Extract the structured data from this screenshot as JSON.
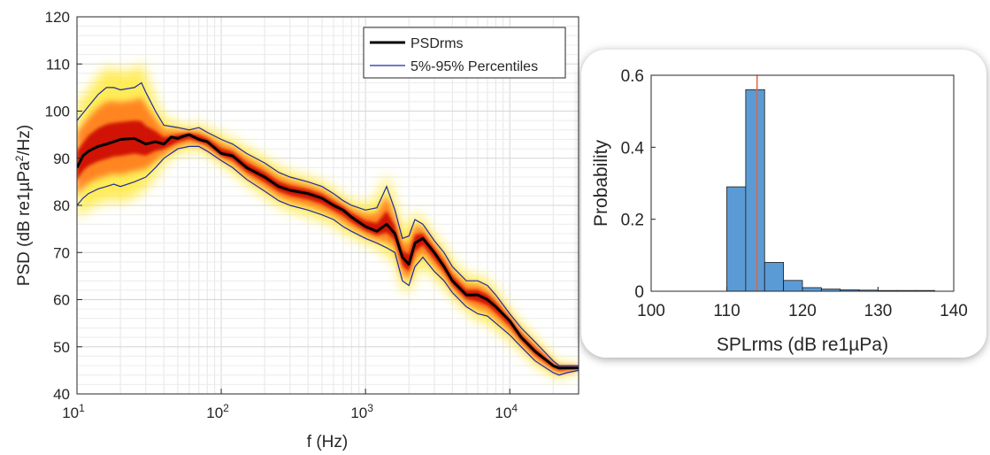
{
  "chart_data": [
    {
      "type": "line",
      "xlabel": "f (Hz)",
      "ylabel_parts": [
        "PSD (dB re1µPa",
        "2",
        "/Hz)"
      ],
      "xscale": "log",
      "xlim": [
        10,
        30000
      ],
      "ylim": [
        40,
        120
      ],
      "yticks": [
        40,
        50,
        60,
        70,
        80,
        90,
        100,
        110,
        120
      ],
      "xticks": [
        {
          "value": 10,
          "base": "10",
          "exp": "1"
        },
        {
          "value": 100,
          "base": "10",
          "exp": "2"
        },
        {
          "value": 1000,
          "base": "10",
          "exp": "3"
        },
        {
          "value": 10000,
          "base": "10",
          "exp": "4"
        }
      ],
      "grid": true,
      "legend_position": "top-right",
      "colors": {
        "psd": "#000000",
        "percentile": "#1f2a9e",
        "heat_core": "#c80000",
        "heat_mid": "#ff7a1a",
        "heat_outer": "#ffe93a"
      },
      "series": [
        {
          "name": "PSDrms",
          "x": [
            10,
            11,
            12,
            14,
            16,
            18,
            20,
            25,
            30,
            35,
            40,
            45,
            50,
            55,
            60,
            70,
            80,
            100,
            120,
            150,
            200,
            250,
            300,
            400,
            500,
            600,
            700,
            800,
            1000,
            1200,
            1400,
            1600,
            1800,
            2000,
            2200,
            2500,
            3000,
            3500,
            4000,
            5000,
            6000,
            7000,
            8000,
            10000,
            12000,
            15000,
            20000,
            22000,
            25000,
            30000
          ],
          "values": [
            88,
            90.5,
            91.5,
            92.5,
            93,
            93.5,
            94,
            94.2,
            93,
            93.5,
            93,
            94.5,
            94.2,
            94.7,
            95,
            94,
            93.5,
            91,
            90.5,
            88,
            86,
            84,
            83.2,
            82.5,
            81.5,
            80,
            79,
            77.5,
            75.5,
            74.5,
            76,
            74,
            69,
            67.5,
            72,
            73,
            70,
            67,
            64,
            61,
            61,
            60,
            58.5,
            55.5,
            52,
            49,
            46,
            45.5,
            45.5,
            45.5
          ]
        },
        {
          "name": "5%-95% Percentiles",
          "x": [
            10,
            12,
            14,
            16,
            18,
            20,
            25,
            28,
            30,
            35,
            40,
            50,
            60,
            70,
            80,
            100,
            120,
            150,
            200,
            250,
            300,
            400,
            500,
            600,
            700,
            800,
            1000,
            1200,
            1400,
            1600,
            1800,
            2000,
            2200,
            2500,
            3000,
            3500,
            4000,
            5000,
            6000,
            7000,
            8000,
            10000,
            12000,
            15000,
            20000,
            22000,
            25000,
            30000
          ],
          "values": [
            98,
            101,
            103.5,
            105,
            105,
            104.5,
            105,
            106,
            104,
            100,
            97,
            96.5,
            96,
            96.5,
            95.5,
            94,
            93,
            91,
            89,
            87,
            86,
            85,
            84,
            82.5,
            81,
            80,
            79,
            79.5,
            84,
            79,
            73,
            73.5,
            77,
            76,
            72.5,
            70,
            67,
            64,
            64,
            63,
            61,
            57,
            54,
            51,
            47,
            46,
            46,
            46
          ]
        },
        {
          "name": "5%-95% Percentiles",
          "x": [
            10,
            11,
            12,
            14,
            16,
            18,
            20,
            25,
            30,
            35,
            40,
            50,
            60,
            70,
            80,
            100,
            120,
            150,
            200,
            250,
            300,
            400,
            500,
            600,
            700,
            800,
            1000,
            1200,
            1400,
            1600,
            1800,
            2000,
            2200,
            2500,
            3000,
            3500,
            4000,
            5000,
            6000,
            7000,
            8000,
            10000,
            12000,
            15000,
            20000,
            22000,
            25000,
            30000
          ],
          "values": [
            80,
            81.5,
            82.5,
            83.5,
            84,
            84.5,
            84,
            85,
            86,
            88,
            90,
            92,
            92.5,
            92.5,
            91.5,
            89.5,
            88,
            85.5,
            83,
            81,
            80,
            79,
            78,
            77,
            75.5,
            74.5,
            73,
            72,
            71,
            70,
            64,
            63,
            67,
            69,
            66,
            64,
            61.5,
            58.5,
            57,
            56.5,
            55,
            52.5,
            50,
            47,
            44.5,
            44,
            44.5,
            45
          ]
        }
      ]
    },
    {
      "type": "bar",
      "xlabel": "SPLrms (dB re1µPa)",
      "ylabel": "Probability",
      "xlim": [
        100,
        140
      ],
      "ylim": [
        0,
        0.6
      ],
      "xticks": [
        100,
        110,
        120,
        130,
        140
      ],
      "yticks": [
        0,
        0.2,
        0.4,
        0.6
      ],
      "ytick_labels": [
        "0",
        "0.2",
        "0.4",
        "0.6"
      ],
      "bin_width": 2.5,
      "bin_edges_start": [
        110,
        112.5,
        115,
        117.5,
        120,
        122.5,
        125,
        127.5,
        130,
        132.5,
        135
      ],
      "values": [
        0.29,
        0.56,
        0.08,
        0.03,
        0.01,
        0.006,
        0.004,
        0.003,
        0.002,
        0.002,
        0.002
      ],
      "vline_x": 114,
      "grid": false,
      "colors": {
        "bar": "#5b9bd5",
        "bar_edge": "#1a1a1a",
        "vline": "#e0653c"
      }
    }
  ]
}
